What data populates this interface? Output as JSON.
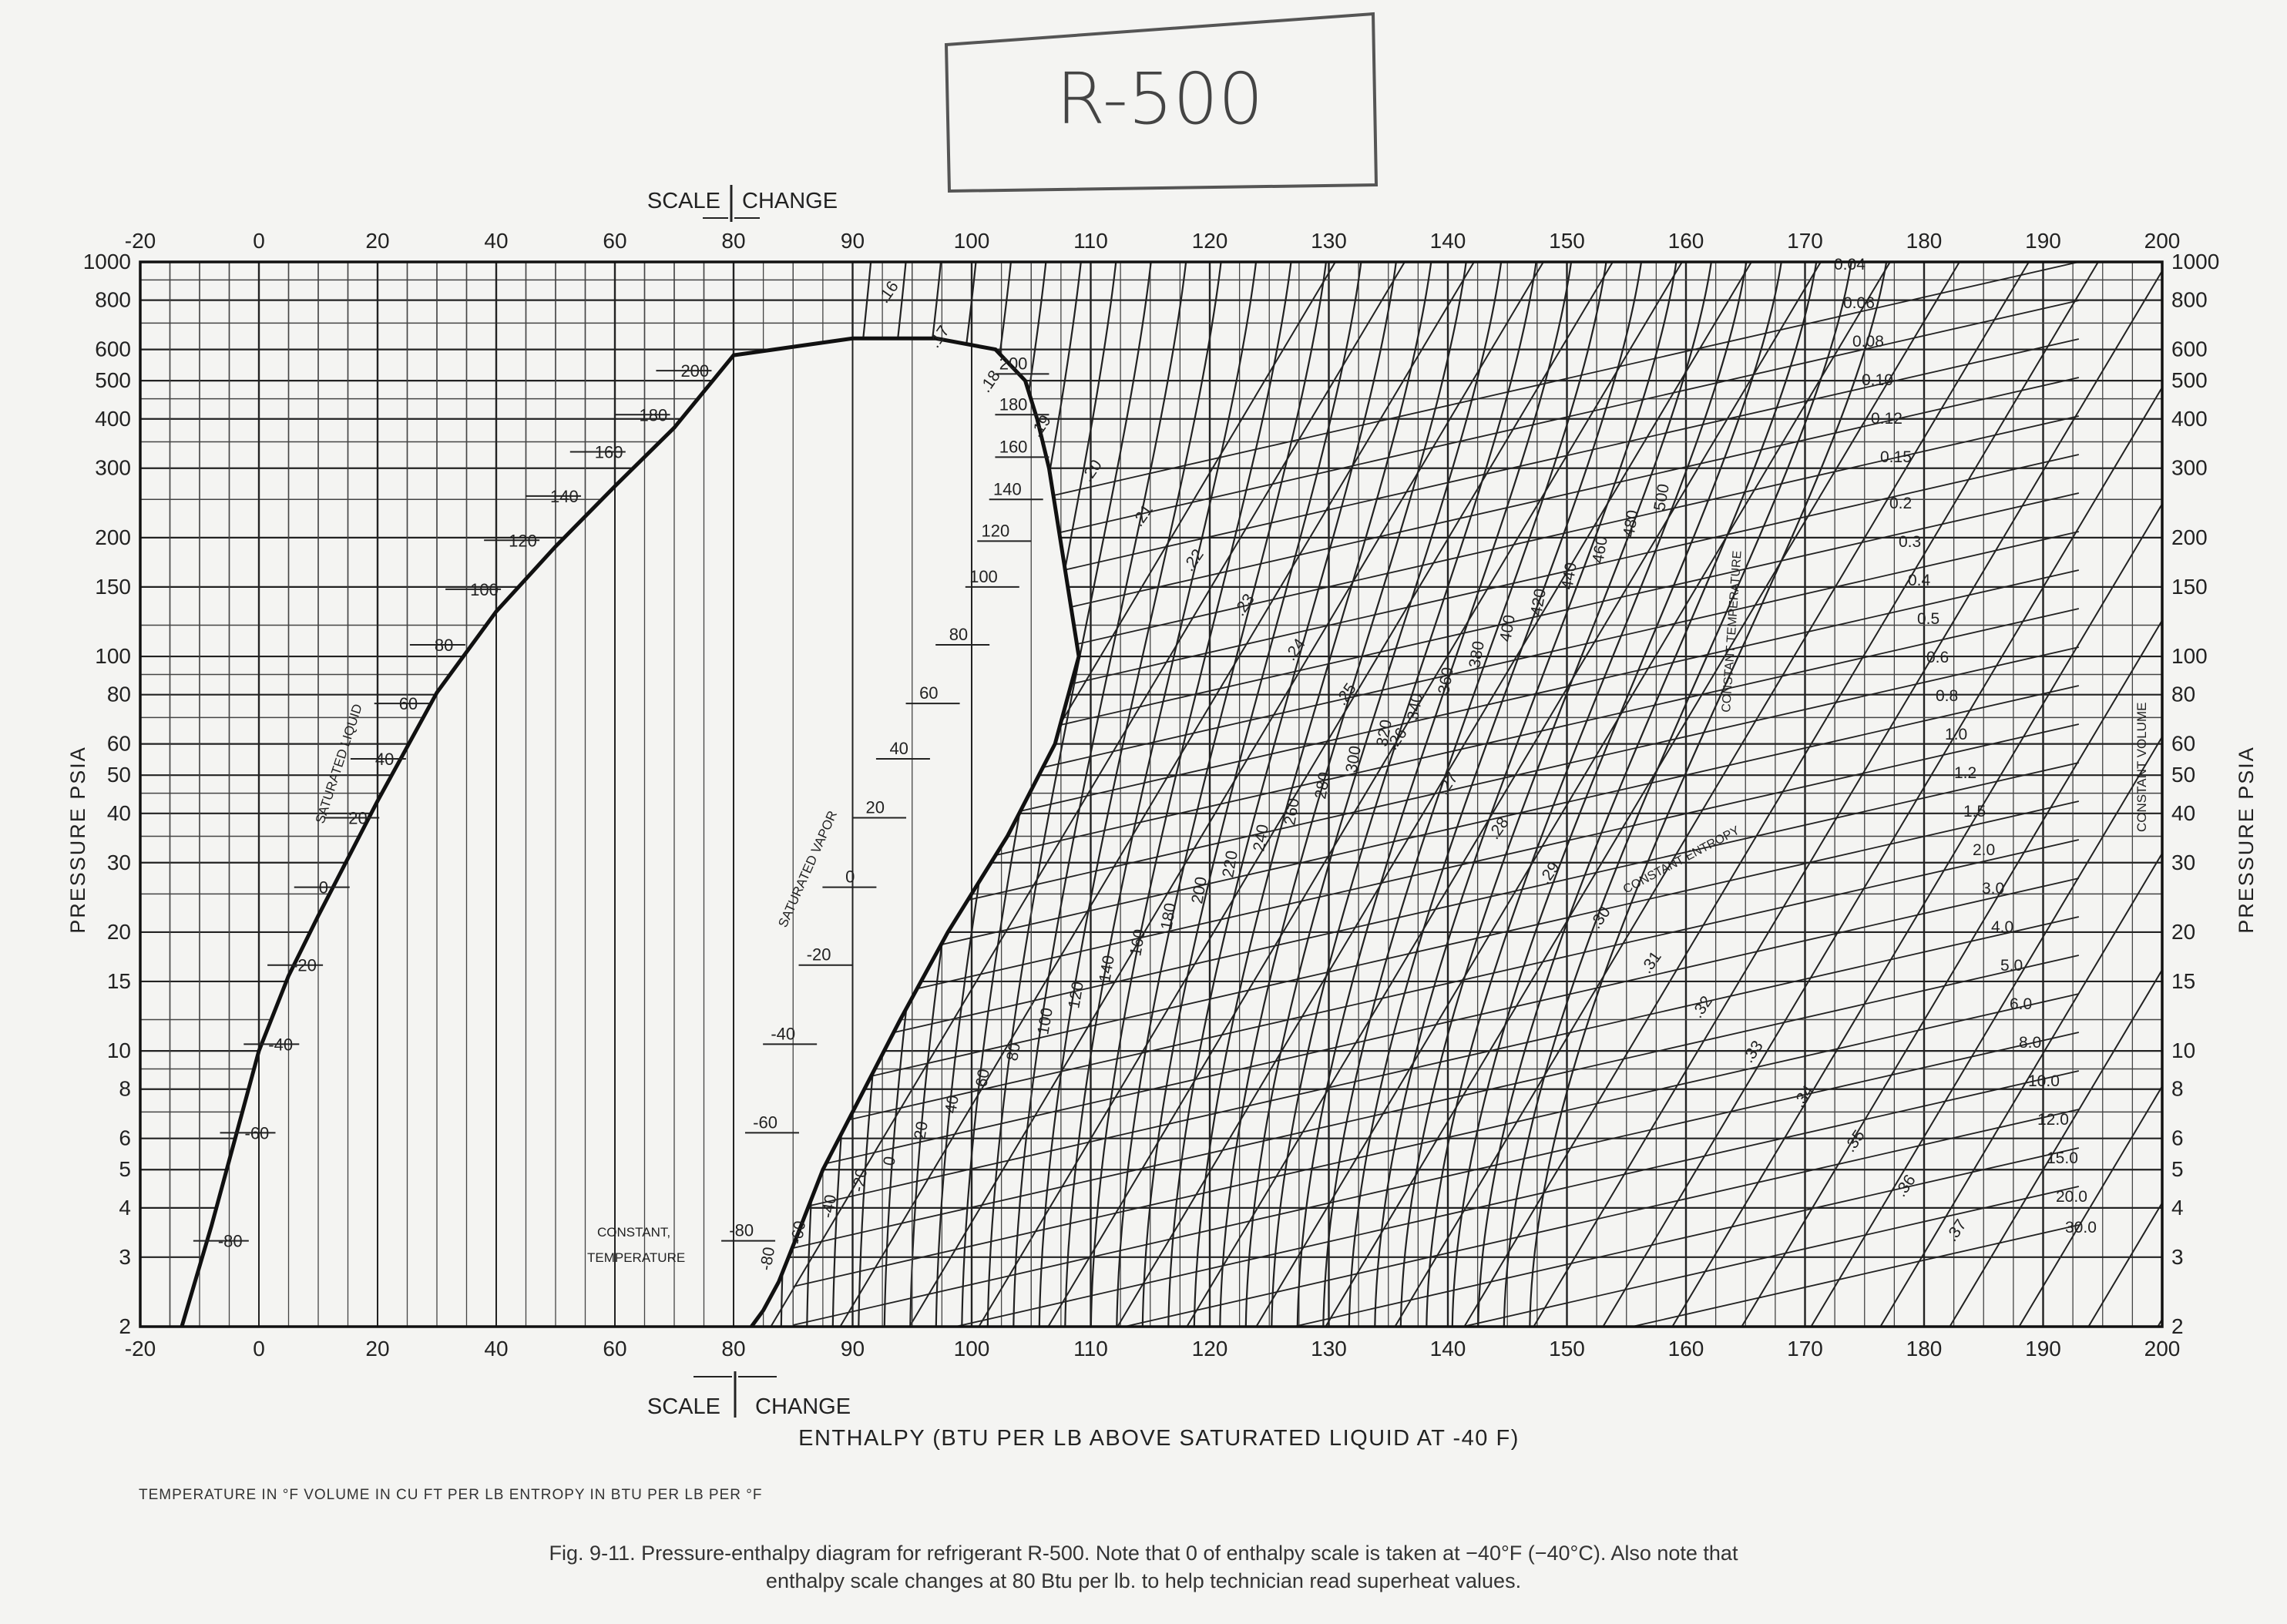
{
  "handwritten_title": "R-500",
  "chart_data": {
    "type": "line",
    "title": "",
    "subtitle": "",
    "xlabel": "ENTHALPY (BTU PER LB ABOVE SATURATED LIQUID AT -40 F)",
    "ylabel_left": "PRESSURE PSIA",
    "ylabel_right": "PRESSURE PSIA",
    "scale_change": {
      "left": "SCALE",
      "right": "CHANGE",
      "at_enthalpy": 80
    },
    "x_ticks": [
      -20,
      0,
      20,
      40,
      60,
      80,
      90,
      100,
      110,
      120,
      130,
      140,
      150,
      160,
      170,
      180,
      190,
      200
    ],
    "x_tick_labels": [
      "-20",
      "0",
      "20",
      "40",
      "60",
      "80",
      "90",
      "100",
      "110",
      "120",
      "130",
      "140",
      "150",
      "160",
      "170",
      "180",
      "190",
      "200"
    ],
    "y_ticks": [
      2,
      3,
      4,
      5,
      6,
      8,
      10,
      15,
      20,
      30,
      40,
      50,
      60,
      80,
      100,
      150,
      200,
      300,
      400,
      500,
      600,
      800,
      1000
    ],
    "y_tick_labels": [
      "2",
      "3",
      "4",
      "5",
      "6",
      "8",
      "10",
      "15",
      "20",
      "30",
      "40",
      "50",
      "60",
      "80",
      "100",
      "150",
      "200",
      "300",
      "400",
      "500",
      "600",
      "800",
      "1000"
    ],
    "x_range": [
      -20,
      200
    ],
    "y_range": [
      2,
      1000
    ],
    "y_scale": "log",
    "grid": true,
    "series": [
      {
        "name": "SATURATED LIQUID",
        "x": [
          -13,
          -8,
          -4,
          0,
          5,
          10,
          20,
          30,
          40,
          50,
          60,
          70,
          80,
          90,
          97,
          102,
          104.5,
          105.5,
          106.5,
          109
        ],
        "y": [
          2,
          3.6,
          6,
          10,
          15.5,
          22,
          43,
          81,
          130,
          190,
          270,
          380,
          580,
          640,
          640,
          600,
          500,
          400,
          300,
          100
        ]
      }
    ],
    "saturated_vapor_x": [
      109,
      107,
      103,
      98,
      94,
      90,
      87.5,
      85.5,
      83.8,
      82.5,
      81.5
    ],
    "saturated_vapor_y": [
      100,
      60,
      35,
      20,
      12,
      7,
      5,
      3.5,
      2.6,
      2.2,
      2
    ],
    "liquid_temp_labels": [
      {
        "t": "200",
        "x": 68.5,
        "p": 530
      },
      {
        "t": "180",
        "x": 61.5,
        "p": 410
      },
      {
        "t": "160",
        "x": 54,
        "p": 330
      },
      {
        "t": "140",
        "x": 46.5,
        "p": 255
      },
      {
        "t": "120",
        "x": 39.5,
        "p": 197
      },
      {
        "t": "100",
        "x": 33,
        "p": 148
      },
      {
        "t": "80",
        "x": 27,
        "p": 107
      },
      {
        "t": "60",
        "x": 21,
        "p": 76
      },
      {
        "t": "40",
        "x": 17,
        "p": 55
      },
      {
        "t": "20",
        "x": 12.5,
        "p": 39
      },
      {
        "t": "0",
        "x": 7.5,
        "p": 26
      },
      {
        "t": "-20",
        "x": 3,
        "p": 16.5
      },
      {
        "t": "-40",
        "x": -1,
        "p": 10.4
      },
      {
        "t": "-60",
        "x": -5,
        "p": 6.2
      },
      {
        "t": "-80",
        "x": -9.5,
        "p": 3.3
      }
    ],
    "vapor_temp_labels": [
      {
        "t": "200",
        "x": 106.5,
        "p": 520
      },
      {
        "t": "180",
        "x": 106.5,
        "p": 410
      },
      {
        "t": "160",
        "x": 106.5,
        "p": 320
      },
      {
        "t": "140",
        "x": 106,
        "p": 250
      },
      {
        "t": "120",
        "x": 105,
        "p": 196
      },
      {
        "t": "100",
        "x": 104,
        "p": 150
      },
      {
        "t": "80",
        "x": 101.5,
        "p": 107
      },
      {
        "t": "60",
        "x": 99,
        "p": 76
      },
      {
        "t": "40",
        "x": 96.5,
        "p": 55
      },
      {
        "t": "20",
        "x": 94.5,
        "p": 39
      },
      {
        "t": "0",
        "x": 92,
        "p": 26
      },
      {
        "t": "-20",
        "x": 90,
        "p": 16.5
      },
      {
        "t": "-40",
        "x": 87,
        "p": 10.4
      },
      {
        "t": "-60",
        "x": 85.5,
        "p": 6.2
      },
      {
        "t": "-80",
        "x": 83.5,
        "p": 3.3
      }
    ],
    "constant_volume_labels": [
      "0.04",
      "0.06",
      "0.08",
      "0.10",
      "0.12",
      "0.15",
      "0.2",
      "0.3",
      "0.4",
      "0.5",
      "0.6",
      "0.8",
      "1.0",
      "1.2",
      "1.5",
      "2.0",
      "3.0",
      "4.0",
      "5.0",
      "6.0",
      "8.0",
      "10.0",
      "12.0",
      "15.0",
      "20.0",
      "30.0"
    ],
    "constant_entropy_labels": [
      ".16",
      ".17",
      ".18",
      ".19",
      ".20",
      ".21",
      ".22",
      ".23",
      ".24",
      ".25",
      ".26",
      ".27",
      ".28",
      ".29",
      ".30",
      ".31",
      ".32",
      ".33",
      ".34",
      ".35",
      ".36",
      ".37"
    ],
    "constant_temperature_labels": [
      "-80",
      "-60",
      "-40",
      "-20",
      "0",
      "20",
      "40",
      "60",
      "80",
      "100",
      "120",
      "140",
      "160",
      "180",
      "200",
      "220",
      "240",
      "260",
      "280",
      "300",
      "320",
      "340",
      "360",
      "380",
      "400",
      "420",
      "440",
      "460",
      "480",
      "500"
    ],
    "annotations": [
      "SATURATED LIQUID",
      "SATURATED VAPOR",
      "CONSTANT TEMPERATURE",
      "CONSTANT ENTROPY",
      "CONSTANT VOLUME",
      "CONSTANT,",
      "TEMPERATURE"
    ]
  },
  "units_note": "TEMPERATURE IN °F   VOLUME IN CU FT PER LB   ENTROPY IN BTU PER LB PER °F",
  "caption_line1": "Fig. 9-11.  Pressure-enthalpy diagram for refrigerant R-500. Note that 0 of enthalpy scale is taken at  −40°F (−40°C). Also note that",
  "caption_line2": "enthalpy scale changes at 80 Btu per lb. to help technician read superheat values."
}
